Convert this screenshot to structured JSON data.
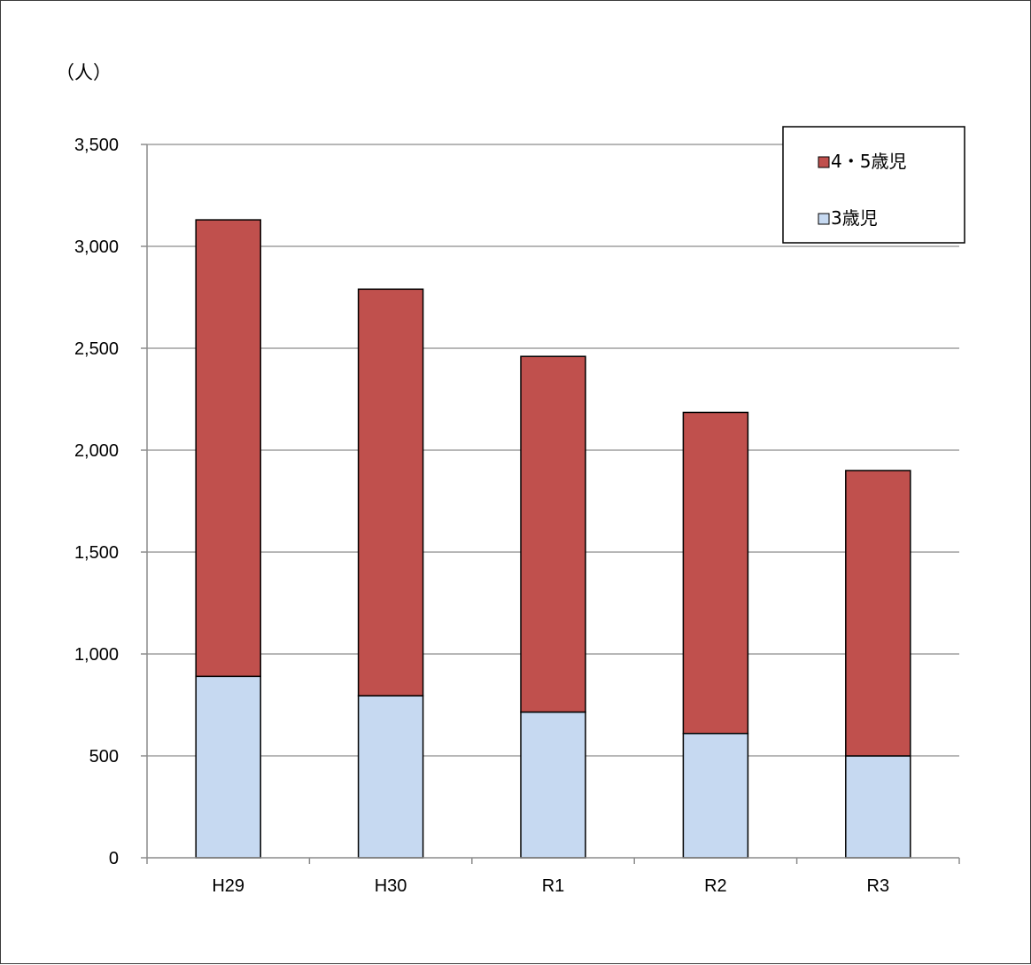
{
  "chart_data": {
    "type": "bar",
    "stacked": true,
    "ylabel": "（人）",
    "ylim": [
      0,
      3500
    ],
    "y_ticks": [
      0,
      500,
      1000,
      1500,
      2000,
      2500,
      3000,
      3500
    ],
    "y_tick_labels": [
      "0",
      "500",
      "1,000",
      "1,500",
      "2,000",
      "2,500",
      "3,000",
      "3,500"
    ],
    "grid": true,
    "legend_position": "top-right",
    "categories": [
      "H29",
      "H30",
      "R1",
      "R2",
      "R3"
    ],
    "series": [
      {
        "name": "3歳児",
        "color": "#c6d9f1",
        "values": [
          890,
          795,
          715,
          610,
          500
        ]
      },
      {
        "name": "4・5歳児",
        "color": "#c0504d",
        "values": [
          2240,
          1995,
          1745,
          1575,
          1400
        ]
      }
    ],
    "legend": [
      {
        "name": "4・5歳児",
        "color": "#c0504d"
      },
      {
        "name": "3歳児",
        "color": "#c6d9f1"
      }
    ]
  }
}
